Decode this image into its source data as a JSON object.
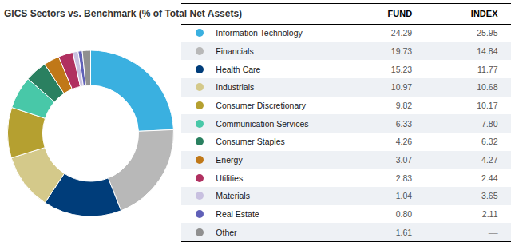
{
  "chart_data": {
    "type": "pie",
    "title": "GICS Sectors vs. Benchmark (% of Total Net Assets)",
    "categories": [
      "Information Technology",
      "Financials",
      "Health Care",
      "Industrials",
      "Consumer Discretionary",
      "Communication Services",
      "Consumer Staples",
      "Energy",
      "Utilities",
      "Materials",
      "Real Estate",
      "Other"
    ],
    "colors": [
      "#3ab0e0",
      "#b8b8b8",
      "#003d7a",
      "#d4c98a",
      "#b5a030",
      "#48c8a8",
      "#2a8060",
      "#c07818",
      "#b03060",
      "#c8c0e0",
      "#6060b8",
      "#909090"
    ],
    "series": [
      {
        "name": "FUND",
        "values": [
          24.29,
          19.73,
          15.23,
          10.97,
          9.82,
          6.33,
          4.26,
          3.07,
          2.83,
          1.04,
          0.8,
          1.61
        ],
        "value_labels": [
          "24.29",
          "19.73",
          "15.23",
          "10.97",
          "9.82",
          "6.33",
          "4.26",
          "3.07",
          "2.83",
          "1.04",
          "0.80",
          "1.61"
        ]
      },
      {
        "name": "INDEX",
        "values": [
          25.95,
          14.84,
          11.77,
          10.68,
          10.17,
          7.8,
          6.32,
          4.27,
          2.44,
          3.65,
          2.11,
          null
        ],
        "value_labels": [
          "25.95",
          "14.84",
          "11.77",
          "10.68",
          "10.17",
          "7.80",
          "6.32",
          "4.27",
          "2.44",
          "3.65",
          "2.11",
          "––"
        ]
      }
    ]
  }
}
